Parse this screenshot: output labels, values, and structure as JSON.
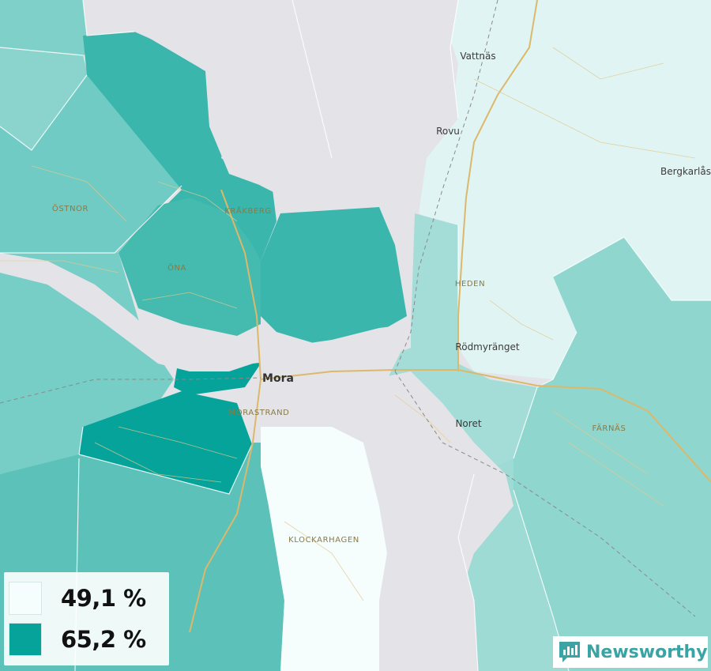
{
  "legend": {
    "items": [
      {
        "label": "49,1 %",
        "color": "#f5fdfd"
      },
      {
        "label": "65,2 %",
        "color": "#06a39a"
      }
    ]
  },
  "places": {
    "mora": "Mora",
    "vattnas": "Vattnäs",
    "rovu": "Rovu",
    "bergkarlas": "Bergkarlås",
    "ostnor": "ÖSTNOR",
    "krakberg": "KRÅKBERG",
    "ona": "ÖNA",
    "heden": "HEDEN",
    "rodmyranget": "Rödmyränget",
    "noret": "Noret",
    "farnas": "FÄRNÄS",
    "morastrand": "MORASTRAND",
    "klockarhagen": "KLOCKARHAGEN"
  },
  "brand": {
    "name": "Newsworthy"
  },
  "colors": {
    "water": "#e4e4e8",
    "lightest": "#f5fdfd",
    "light": "#dff4f3",
    "mid_light": "#a4ddd8",
    "mid": "#7fd0c9",
    "mid_dark": "#5cc2b9",
    "dark": "#3ab6ac",
    "darkest": "#06a39a",
    "road": "#dcb86a"
  }
}
